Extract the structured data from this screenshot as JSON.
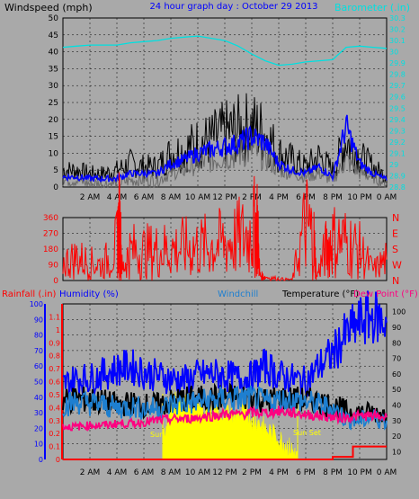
{
  "page": {
    "title": "24 hour graph day : October 29 2013"
  },
  "colors": {
    "background": "#a9a9a9",
    "wind_avg": "#0000ff",
    "wind_gust": "#000000",
    "wind_light": "#6a6a6a",
    "baro": "#00e0e0",
    "wind_dir": "#ff0000",
    "humidity": "#0000ff",
    "windchill": "#1e7fd0",
    "temperature": "#000000",
    "dewpoint": "#ff0080",
    "solar": "#ffff00",
    "rain": "#ff0000",
    "left_axis_blue": "#0000ff",
    "left_axis_red": "#ff0000",
    "right_axis_cyan": "#00e0e0"
  },
  "chart_data": [
    {
      "type": "line",
      "title": "24 hour graph day : October 29 2013",
      "ylabel": "Windspeed (mph)",
      "y2label": "Barometer (.in)",
      "ylim": [
        0,
        50
      ],
      "y2lim": [
        28.8,
        30.3
      ],
      "yticks": [
        "0",
        "5",
        "10",
        "15",
        "20",
        "25",
        "30",
        "35",
        "40",
        "45",
        "50"
      ],
      "y2ticks": [
        "28.8",
        "28.9",
        "29",
        "29.1",
        "29.2",
        "29.3",
        "29.4",
        "29.5",
        "29.6",
        "29.7",
        "29.8",
        "29.9",
        "30",
        "30.1",
        "30.2",
        "30.3"
      ],
      "xticks": [
        "2 AM",
        "4 AM",
        "6 AM",
        "8 AM",
        "10 AM",
        "12 PM",
        "2 PM",
        "4 PM",
        "6 PM",
        "8 PM",
        "10 PM",
        "0 AM"
      ],
      "grid": true,
      "series": [
        {
          "key": "gust",
          "color": "#000000",
          "x": [
            0,
            1,
            2,
            3,
            4,
            5,
            6,
            7,
            8,
            9,
            10,
            11,
            12,
            13,
            14,
            15,
            16,
            17,
            18,
            19,
            20,
            21,
            22,
            23,
            24
          ],
          "values": [
            5,
            5,
            4,
            4,
            5,
            7,
            6,
            6,
            10,
            11,
            13,
            14,
            16,
            17,
            18,
            16,
            10,
            8,
            6,
            9,
            5,
            14,
            9,
            6,
            3
          ]
        },
        {
          "key": "light",
          "color": "#6a6a6a",
          "x": [
            0,
            1,
            2,
            3,
            4,
            5,
            6,
            7,
            8,
            9,
            10,
            11,
            12,
            13,
            14,
            15,
            16,
            17,
            18,
            19,
            20,
            21,
            22,
            23,
            24
          ],
          "values": [
            2,
            2,
            1,
            1,
            1,
            2,
            2,
            2,
            4,
            5,
            7,
            8,
            9,
            10,
            11,
            9,
            5,
            4,
            3,
            4,
            2,
            8,
            4,
            3,
            1
          ]
        },
        {
          "key": "average",
          "color": "#0000ff",
          "x": [
            0,
            1,
            2,
            3,
            4,
            5,
            6,
            7,
            8,
            9,
            10,
            11,
            12,
            13,
            14,
            15,
            16,
            17,
            18,
            19,
            20,
            21,
            22,
            23,
            24
          ],
          "values": [
            3,
            3,
            2.5,
            2.5,
            2.5,
            4,
            4,
            4,
            7,
            8,
            10,
            11,
            12,
            13,
            15,
            13,
            7,
            5,
            4,
            6,
            3,
            18,
            7,
            4,
            2
          ]
        },
        {
          "key": "barometer",
          "color": "#00e0e0",
          "axis": "right",
          "x": [
            0,
            1,
            2,
            3,
            4,
            5,
            6,
            7,
            8,
            9,
            10,
            11,
            12,
            13,
            14,
            15,
            16,
            17,
            18,
            19,
            20,
            21,
            22,
            23,
            24
          ],
          "values": [
            30.04,
            30.05,
            30.06,
            30.06,
            30.06,
            30.08,
            30.09,
            30.1,
            30.12,
            30.13,
            30.14,
            30.12,
            30.1,
            30.05,
            29.98,
            29.92,
            29.88,
            29.89,
            29.91,
            29.92,
            29.93,
            30.04,
            30.05,
            30.04,
            30.03
          ]
        }
      ]
    },
    {
      "type": "line",
      "ylim": [
        0,
        360
      ],
      "yticks": [
        "0",
        "90",
        "180",
        "270",
        "360"
      ],
      "y2ticks": [
        "N",
        "W",
        "S",
        "E",
        "N"
      ],
      "xticks": [],
      "grid": true,
      "series": [
        {
          "key": "direction",
          "color": "#ff0000",
          "x": [
            0,
            1,
            2,
            3,
            4,
            4.2,
            4.4,
            5,
            6,
            7,
            8,
            9,
            10,
            11,
            12,
            13,
            14,
            14.4,
            14.6,
            15,
            16,
            17,
            18,
            18.6,
            18.8,
            19.5,
            20,
            21,
            22,
            23,
            24
          ],
          "values": [
            100,
            130,
            100,
            90,
            200,
            350,
            60,
            170,
            165,
            170,
            180,
            185,
            190,
            200,
            215,
            240,
            270,
            340,
            30,
            20,
            10,
            5,
            330,
            240,
            20,
            180,
            230,
            220,
            170,
            60,
            120
          ]
        }
      ]
    },
    {
      "type": "line",
      "ylabel_left_outer": "Rainfall (.in)",
      "ylabel_left_inner": "Humidity (%)",
      "windchill_label": "Windchill",
      "temperature_label": "Temperature (°F)",
      "dewpoint_label": "Dew Point (°F)",
      "ylim_humidity": [
        0,
        100
      ],
      "ylim_rain": [
        0,
        1.2
      ],
      "ylim_temp": [
        10,
        100
      ],
      "yticks_humidity": [
        "0",
        "10",
        "20",
        "30",
        "40",
        "50",
        "60",
        "70",
        "80",
        "90",
        "100"
      ],
      "yticks_rain": [
        "0",
        "0.1",
        "0.2",
        "0.3",
        "0.4",
        "0.5",
        "0.6",
        "0.7",
        "0.8",
        "0.9",
        "1",
        "1.1"
      ],
      "yticks_temp": [
        "10",
        "20",
        "30",
        "40",
        "50",
        "60",
        "70",
        "80",
        "90",
        "100"
      ],
      "xticks": [
        "2 AM",
        "4 AM",
        "6 AM",
        "8 AM",
        "10 AM",
        "12 PM",
        "2 PM",
        "4 PM",
        "6 PM",
        "8 PM",
        "10 PM",
        "0 AM"
      ],
      "annotations": [
        "Sun",
        "Sun Set"
      ],
      "grid": true,
      "series": [
        {
          "key": "humidity",
          "color": "#0000ff",
          "x": [
            0,
            1,
            2,
            3,
            4,
            5,
            6,
            7,
            8,
            9,
            10,
            11,
            12,
            13,
            14,
            15,
            16,
            17,
            18,
            19,
            20,
            21,
            22,
            23,
            24
          ],
          "values": [
            48,
            52,
            52,
            55,
            58,
            60,
            56,
            54,
            52,
            51,
            54,
            55,
            54,
            52,
            53,
            60,
            54,
            52,
            50,
            60,
            68,
            80,
            88,
            92,
            88
          ]
        },
        {
          "key": "temperature",
          "color": "#000000",
          "x": [
            0,
            1,
            2,
            3,
            4,
            5,
            6,
            7,
            8,
            9,
            10,
            11,
            12,
            13,
            14,
            15,
            16,
            17,
            18,
            19,
            20,
            21,
            22,
            23,
            24
          ],
          "values": [
            43,
            44,
            43,
            42,
            40,
            41,
            40,
            40,
            42,
            44,
            44,
            44,
            45,
            45,
            45,
            43,
            44,
            44,
            43,
            42,
            40,
            36,
            35,
            35,
            34
          ]
        },
        {
          "key": "windchill",
          "color": "#1e7fd0",
          "x": [
            0,
            1,
            2,
            3,
            4,
            5,
            6,
            7,
            8,
            9,
            10,
            11,
            12,
            13,
            14,
            15,
            16,
            17,
            18,
            19,
            20,
            21,
            22,
            23,
            24
          ],
          "values": [
            40,
            42,
            41,
            40,
            38,
            39,
            38,
            38,
            40,
            41,
            42,
            43,
            44,
            44,
            44,
            42,
            43,
            43,
            42,
            40,
            38,
            31,
            30,
            32,
            30
          ]
        },
        {
          "key": "dewpoint",
          "color": "#ff0080",
          "x": [
            0,
            1,
            2,
            3,
            4,
            5,
            6,
            7,
            8,
            9,
            10,
            11,
            12,
            13,
            14,
            15,
            16,
            17,
            18,
            19,
            20,
            21,
            22,
            23,
            24
          ],
          "values": [
            26,
            26,
            27,
            27,
            28,
            28,
            29,
            30,
            31,
            31,
            32,
            33,
            34,
            34,
            35,
            35,
            36,
            35,
            34,
            33,
            32,
            32,
            33,
            33,
            32
          ]
        },
        {
          "key": "solar",
          "color": "#ffff00",
          "type": "area",
          "x": [
            7.4,
            8,
            9,
            10,
            11,
            12,
            13,
            13.5,
            14,
            14.5,
            15,
            16,
            16.5,
            17,
            17.4
          ],
          "values": [
            12,
            38,
            36,
            34,
            33,
            30,
            28,
            32,
            26,
            24,
            20,
            14,
            10,
            6,
            0
          ]
        },
        {
          "key": "rain",
          "color": "#ff0000",
          "axis": "rain",
          "x": [
            0,
            19.5,
            20,
            21,
            21.5,
            22,
            23,
            24
          ],
          "values": [
            0,
            0,
            0.02,
            0.02,
            0.1,
            0.1,
            0.1,
            0.1
          ]
        }
      ]
    }
  ]
}
